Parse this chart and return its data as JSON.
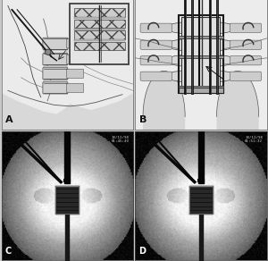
{
  "fig_width": 3.0,
  "fig_height": 2.92,
  "dpi": 100,
  "bg_color": "#c8c8c8",
  "panel_A": {
    "bg": "#e8e8e8",
    "border": "#555555"
  },
  "panel_B": {
    "bg": "#e8e8e8",
    "border": "#555555"
  },
  "panel_C": {
    "bg": "#181818"
  },
  "panel_D": {
    "bg": "#181818"
  },
  "label_A": "A",
  "label_B": "B",
  "label_C": "C",
  "label_D": "D"
}
